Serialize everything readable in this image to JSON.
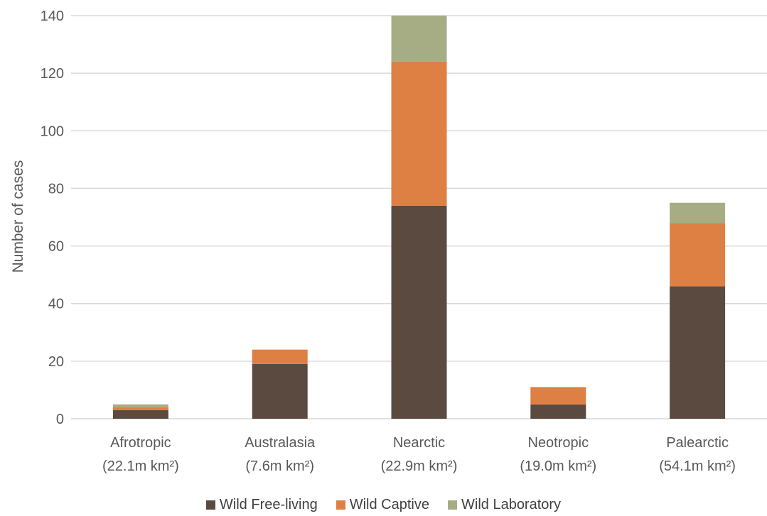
{
  "chart_data": {
    "type": "bar",
    "stacked": true,
    "categories": [
      [
        "Afrotropic",
        "(22.1m km²)"
      ],
      [
        "Australasia",
        "(7.6m km²)"
      ],
      [
        "Nearctic",
        "(22.9m km²)"
      ],
      [
        "Neotropic",
        "(19.0m km²)"
      ],
      [
        "Palearctic",
        "(54.1m km²)"
      ]
    ],
    "series": [
      {
        "name": "Wild Free-living",
        "color": "#5b4a3f",
        "values": [
          3,
          19,
          74,
          5,
          46
        ]
      },
      {
        "name": "Wild Captive",
        "color": "#de7f44",
        "values": [
          1,
          5,
          50,
          6,
          22
        ]
      },
      {
        "name": "Wild Laboratory",
        "color": "#a6ad85",
        "values": [
          1,
          0,
          16,
          0,
          7
        ]
      }
    ],
    "title": "",
    "xlabel": "",
    "ylabel": "Number of cases",
    "ylim": [
      0,
      140
    ],
    "yticks": [
      0,
      20,
      40,
      60,
      80,
      100,
      120,
      140
    ],
    "grid": true,
    "legend_position": "bottom",
    "gridline_color": "#d9d9d9"
  }
}
